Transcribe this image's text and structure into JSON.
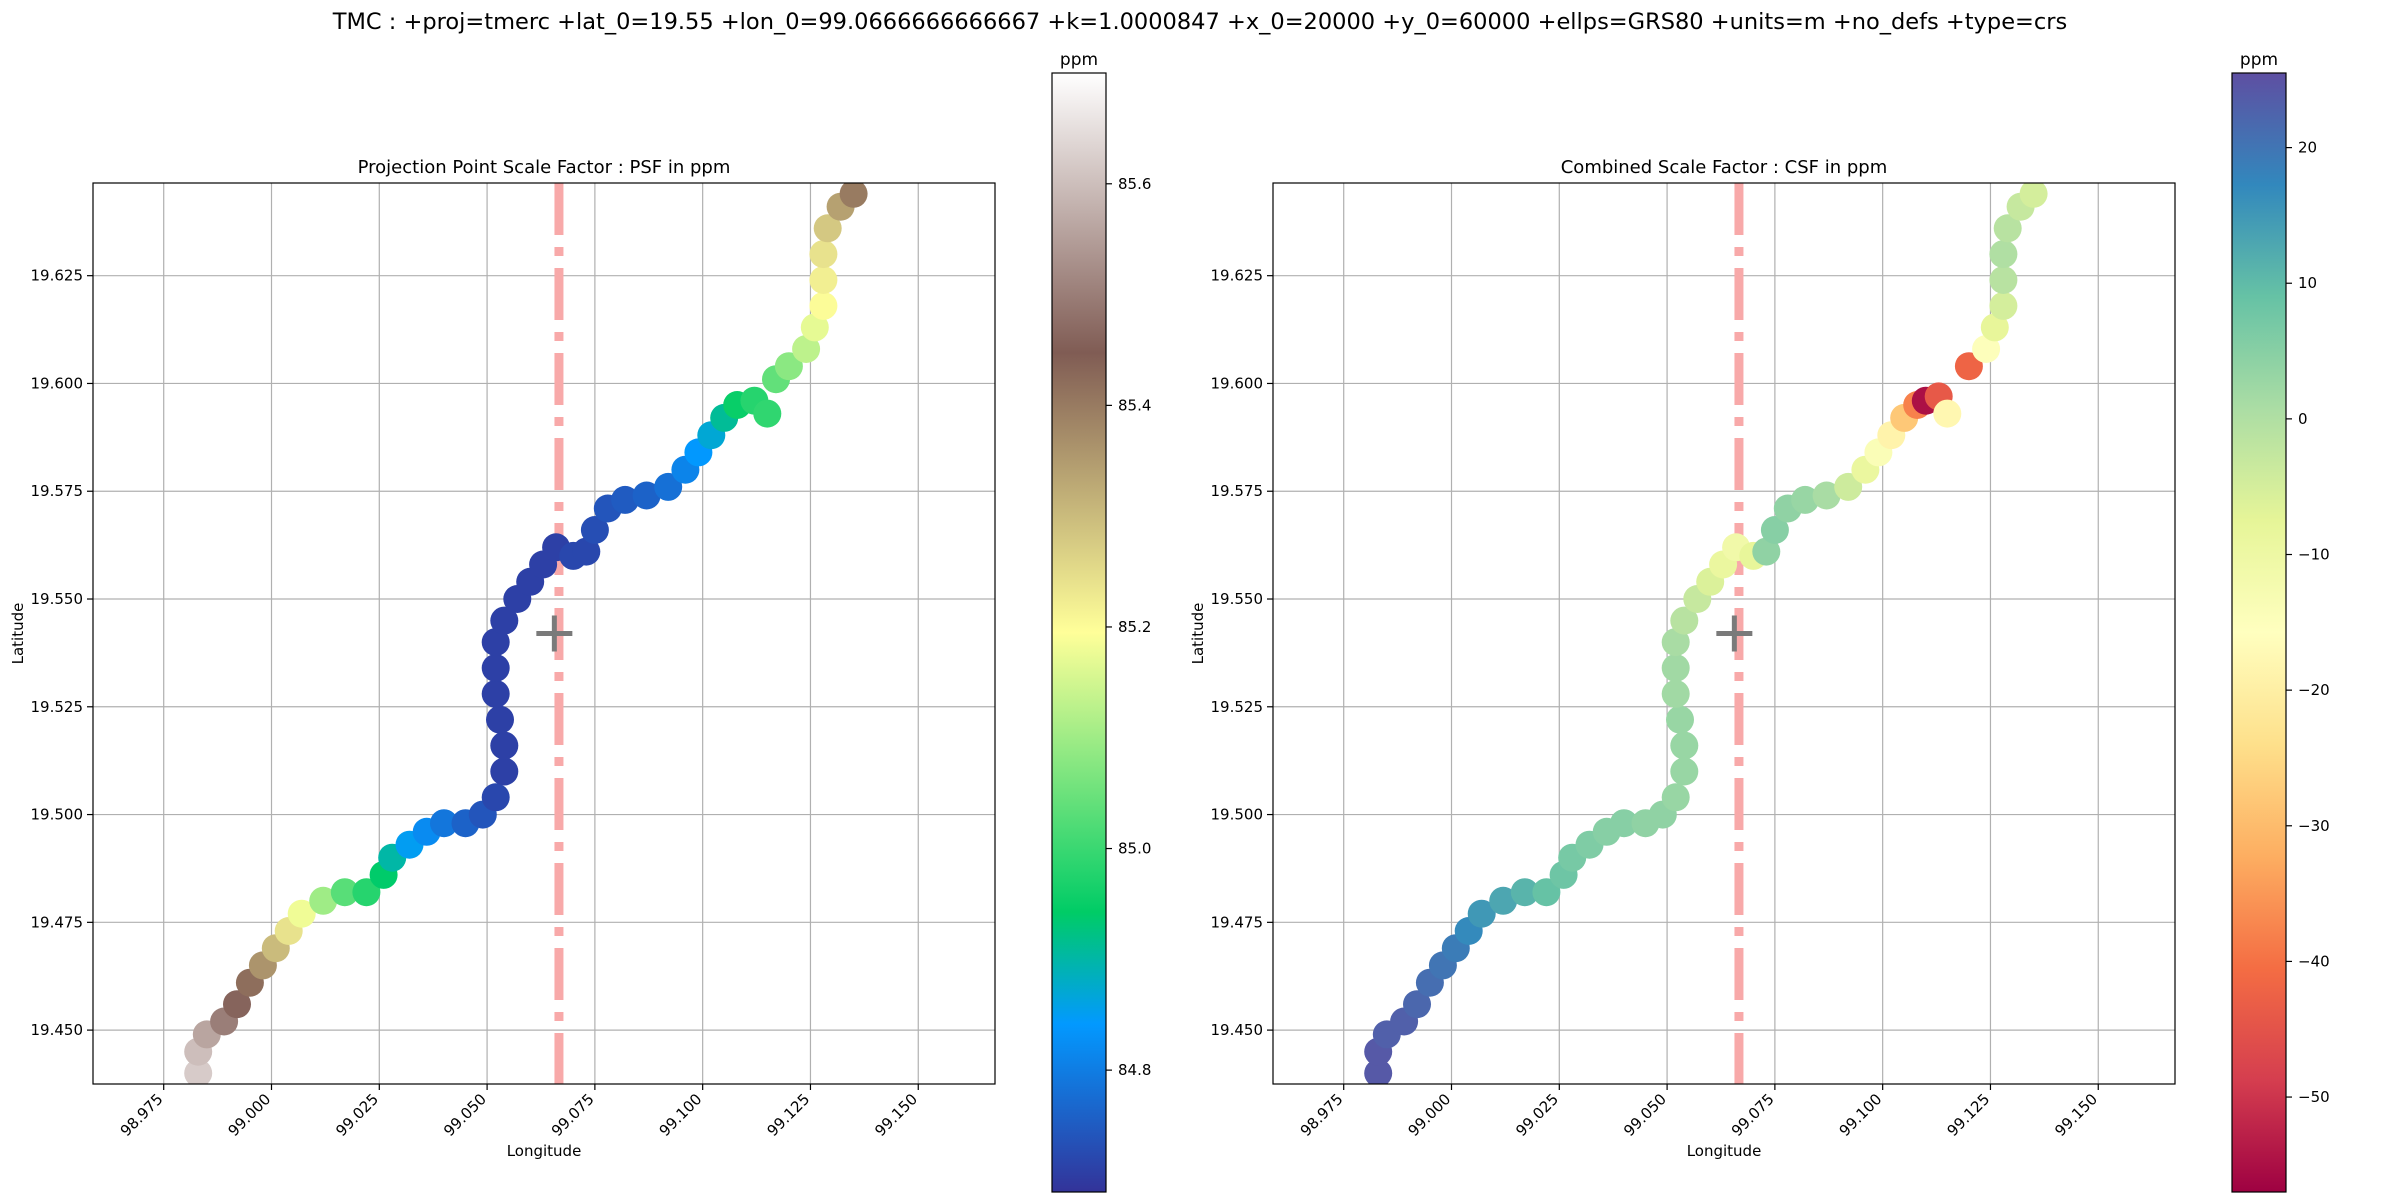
{
  "suptitle": "TMC : +proj=tmerc +lat_0=19.55 +lon_0=99.0666666666667 +k=1.0000847 +x_0=20000 +y_0=60000 +ellps=GRS80 +units=m +no_defs +type=crs",
  "chart_data": [
    {
      "type": "scatter",
      "title": "Projection Point Scale Factor : PSF in ppm",
      "xlabel": "Longitude",
      "ylabel": "Latitude",
      "xlim": [
        98.9586,
        99.1678
      ],
      "ylim": [
        19.4375,
        19.6465
      ],
      "xticks": [
        98.975,
        99.0,
        99.025,
        99.05,
        99.075,
        99.1,
        99.125,
        99.15
      ],
      "xtick_labels": [
        "98.975",
        "99.000",
        "99.025",
        "99.050",
        "99.075",
        "99.100",
        "99.125",
        "99.150"
      ],
      "yticks": [
        19.45,
        19.475,
        19.5,
        19.525,
        19.55,
        19.575,
        19.6,
        19.625
      ],
      "ytick_labels": [
        "19.450",
        "19.475",
        "19.500",
        "19.525",
        "19.550",
        "19.575",
        "19.600",
        "19.625"
      ],
      "grid": true,
      "central_meridian": 99.0666666666667,
      "origin_marker": {
        "lon": 99.0656,
        "lat": 19.542
      },
      "colorbar": {
        "label": "ppm",
        "colormap": "terrain",
        "vmin": 84.69,
        "vmax": 85.7,
        "ticks": [
          84.8,
          85.0,
          85.2,
          85.4,
          85.6
        ],
        "tick_labels": [
          "84.8",
          "85.0",
          "85.2",
          "85.4",
          "85.6"
        ]
      },
      "series": [
        {
          "points": [
            [
              98.983,
              19.44,
              85.62
            ],
            [
              98.983,
              19.445,
              85.6
            ],
            [
              98.985,
              19.449,
              85.56
            ],
            [
              98.989,
              19.452,
              85.5
            ],
            [
              98.992,
              19.456,
              85.46
            ],
            [
              98.995,
              19.461,
              85.42
            ],
            [
              98.998,
              19.465,
              85.36
            ],
            [
              99.001,
              19.469,
              85.3
            ],
            [
              99.004,
              19.473,
              85.24
            ],
            [
              99.007,
              19.477,
              85.18
            ],
            [
              99.012,
              19.48,
              85.1
            ],
            [
              99.017,
              19.482,
              85.03
            ],
            [
              99.022,
              19.482,
              84.98
            ],
            [
              99.026,
              19.486,
              84.94
            ],
            [
              99.028,
              19.49,
              84.9
            ],
            [
              99.032,
              19.493,
              84.85
            ],
            [
              99.036,
              19.496,
              84.82
            ],
            [
              99.04,
              19.498,
              84.79
            ],
            [
              99.045,
              19.498,
              84.76
            ],
            [
              99.049,
              19.5,
              84.74
            ],
            [
              99.052,
              19.504,
              84.72
            ],
            [
              99.054,
              19.51,
              84.71
            ],
            [
              99.054,
              19.516,
              84.71
            ],
            [
              99.053,
              19.522,
              84.71
            ],
            [
              99.052,
              19.528,
              84.71
            ],
            [
              99.052,
              19.534,
              84.71
            ],
            [
              99.052,
              19.54,
              84.71
            ],
            [
              99.054,
              19.545,
              84.71
            ],
            [
              99.057,
              19.55,
              84.71
            ],
            [
              99.06,
              19.554,
              84.71
            ],
            [
              99.063,
              19.558,
              84.71
            ],
            [
              99.066,
              19.562,
              84.71
            ],
            [
              99.07,
              19.56,
              84.72
            ],
            [
              99.073,
              19.561,
              84.72
            ],
            [
              99.075,
              19.566,
              84.73
            ],
            [
              99.078,
              19.571,
              84.74
            ],
            [
              99.082,
              19.573,
              84.75
            ],
            [
              99.087,
              19.574,
              84.76
            ],
            [
              99.092,
              19.576,
              84.78
            ],
            [
              99.096,
              19.58,
              84.81
            ],
            [
              99.099,
              19.584,
              84.84
            ],
            [
              99.102,
              19.588,
              84.87
            ],
            [
              99.105,
              19.592,
              84.91
            ],
            [
              99.108,
              19.595,
              84.95
            ],
            [
              99.112,
              19.596,
              84.98
            ],
            [
              99.115,
              19.593,
              84.99
            ],
            [
              99.117,
              19.601,
              85.04
            ],
            [
              99.12,
              19.604,
              85.08
            ],
            [
              99.124,
              19.608,
              85.13
            ],
            [
              99.126,
              19.613,
              85.17
            ],
            [
              99.128,
              19.618,
              85.2
            ],
            [
              99.128,
              19.624,
              85.22
            ],
            [
              99.128,
              19.63,
              85.24
            ],
            [
              99.129,
              19.636,
              85.28
            ],
            [
              99.132,
              19.641,
              85.34
            ],
            [
              99.135,
              19.644,
              85.4
            ]
          ]
        }
      ]
    },
    {
      "type": "scatter",
      "title": "Combined Scale Factor : CSF in ppm",
      "xlabel": "Longitude",
      "ylabel": "Latitude",
      "xlim": [
        98.9586,
        99.1678
      ],
      "ylim": [
        19.4375,
        19.6465
      ],
      "xticks": [
        98.975,
        99.0,
        99.025,
        99.05,
        99.075,
        99.1,
        99.125,
        99.15
      ],
      "xtick_labels": [
        "98.975",
        "99.000",
        "99.025",
        "99.050",
        "99.075",
        "99.100",
        "99.125",
        "99.150"
      ],
      "yticks": [
        19.45,
        19.475,
        19.5,
        19.525,
        19.55,
        19.575,
        19.6,
        19.625
      ],
      "ytick_labels": [
        "19.450",
        "19.475",
        "19.500",
        "19.525",
        "19.550",
        "19.575",
        "19.600",
        "19.625"
      ],
      "grid": true,
      "central_meridian": 99.0666666666667,
      "origin_marker": {
        "lon": 99.0656,
        "lat": 19.542
      },
      "colorbar": {
        "label": "ppm",
        "colormap": "Spectral",
        "vmin": -57,
        "vmax": 25.5,
        "ticks": [
          20,
          10,
          0,
          -10,
          -20,
          -30,
          -40,
          -50
        ],
        "tick_labels": [
          "20",
          "10",
          "0",
          "−10",
          "−20",
          "−30",
          "−40",
          "−50"
        ]
      },
      "series": [
        {
          "points": [
            [
              98.983,
              19.44,
              24
            ],
            [
              98.983,
              19.445,
              24
            ],
            [
              98.985,
              19.449,
              23
            ],
            [
              98.989,
              19.452,
              23
            ],
            [
              98.992,
              19.456,
              22
            ],
            [
              98.995,
              19.461,
              21
            ],
            [
              98.998,
              19.465,
              20
            ],
            [
              99.001,
              19.469,
              19
            ],
            [
              99.004,
              19.473,
              17
            ],
            [
              99.007,
              19.477,
              15
            ],
            [
              99.012,
              19.48,
              13
            ],
            [
              99.017,
              19.482,
              11
            ],
            [
              99.022,
              19.482,
              9
            ],
            [
              99.026,
              19.486,
              8
            ],
            [
              99.028,
              19.49,
              7
            ],
            [
              99.032,
              19.493,
              6
            ],
            [
              99.036,
              19.496,
              5
            ],
            [
              99.04,
              19.498,
              5
            ],
            [
              99.045,
              19.498,
              4
            ],
            [
              99.049,
              19.5,
              4
            ],
            [
              99.052,
              19.504,
              3
            ],
            [
              99.054,
              19.51,
              3
            ],
            [
              99.054,
              19.516,
              3
            ],
            [
              99.053,
              19.522,
              3
            ],
            [
              99.052,
              19.528,
              2
            ],
            [
              99.052,
              19.534,
              2
            ],
            [
              99.052,
              19.54,
              1
            ],
            [
              99.054,
              19.545,
              -1
            ],
            [
              99.057,
              19.55,
              -3
            ],
            [
              99.06,
              19.554,
              -6
            ],
            [
              99.063,
              19.558,
              -9
            ],
            [
              99.066,
              19.562,
              -11
            ],
            [
              99.07,
              19.56,
              -8
            ],
            [
              99.073,
              19.561,
              4
            ],
            [
              99.075,
              19.566,
              5
            ],
            [
              99.078,
              19.571,
              4
            ],
            [
              99.082,
              19.573,
              3
            ],
            [
              99.087,
              19.574,
              1
            ],
            [
              99.092,
              19.576,
              -4
            ],
            [
              99.096,
              19.58,
              -9
            ],
            [
              99.099,
              19.584,
              -14
            ],
            [
              99.102,
              19.588,
              -19
            ],
            [
              99.105,
              19.592,
              -28
            ],
            [
              99.108,
              19.595,
              -38
            ],
            [
              99.11,
              19.596,
              -55
            ],
            [
              99.113,
              19.597,
              -44
            ],
            [
              99.115,
              19.593,
              -18
            ],
            [
              99.12,
              19.604,
              -42
            ],
            [
              99.124,
              19.608,
              -15
            ],
            [
              99.126,
              19.613,
              -8
            ],
            [
              99.128,
              19.618,
              -5
            ],
            [
              99.128,
              19.624,
              -1
            ],
            [
              99.128,
              19.63,
              0
            ],
            [
              99.129,
              19.636,
              -1
            ],
            [
              99.132,
              19.641,
              -3
            ],
            [
              99.135,
              19.644,
              -5
            ]
          ]
        }
      ]
    }
  ]
}
